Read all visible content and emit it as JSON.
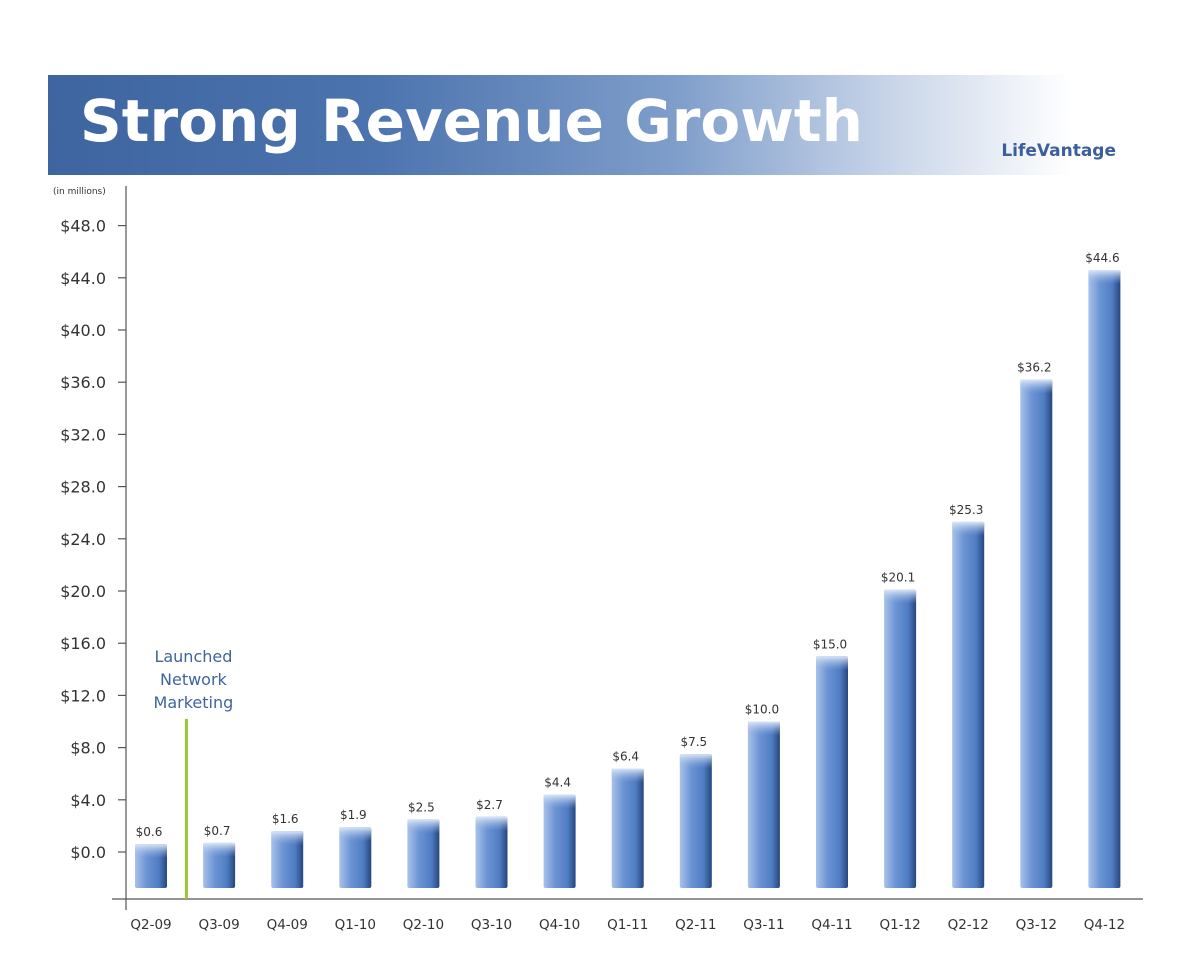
{
  "header": {
    "title": "Strong Revenue Growth",
    "brand": "LifeVantage"
  },
  "colors": {
    "banner": "#4a72ad",
    "bar": "#5b86c9",
    "annotation_line": "#9cc43a",
    "annotation_text": "#3f64a0"
  },
  "chart_data": {
    "type": "bar",
    "title": "Strong Revenue Growth",
    "unit_label": "(in millions)",
    "categories": [
      "Q2-09",
      "Q3-09",
      "Q4-09",
      "Q1-10",
      "Q2-10",
      "Q3-10",
      "Q4-10",
      "Q1-11",
      "Q2-11",
      "Q3-11",
      "Q4-11",
      "Q1-12",
      "Q2-12",
      "Q3-12",
      "Q4-12"
    ],
    "values": [
      0.6,
      0.7,
      1.6,
      1.9,
      2.5,
      2.7,
      4.4,
      6.4,
      7.5,
      10.0,
      15.0,
      20.1,
      25.3,
      36.2,
      44.6
    ],
    "value_labels": [
      "$0.6",
      "$0.7",
      "$1.6",
      "$1.9",
      "$2.5",
      "$2.7",
      "$4.4",
      "$6.4",
      "$7.5",
      "$10.0",
      "$15.0",
      "$20.1",
      "$25.3",
      "$36.2",
      "$44.6"
    ],
    "yticks": [
      0,
      4,
      8,
      12,
      16,
      20,
      24,
      28,
      32,
      36,
      40,
      44,
      48
    ],
    "ytick_labels": [
      "$0.0",
      "$4.0",
      "$8.0",
      "$12.0",
      "$16.0",
      "$20.0",
      "$24.0",
      "$28.0",
      "$32.0",
      "$36.0",
      "$40.0",
      "$44.0",
      "$48.0"
    ],
    "ylim": [
      -2,
      52
    ],
    "grid": false,
    "annotation": {
      "lines": [
        "Launched",
        "Network",
        "Marketing"
      ],
      "between_categories": [
        "Q2-09",
        "Q3-09"
      ]
    }
  }
}
